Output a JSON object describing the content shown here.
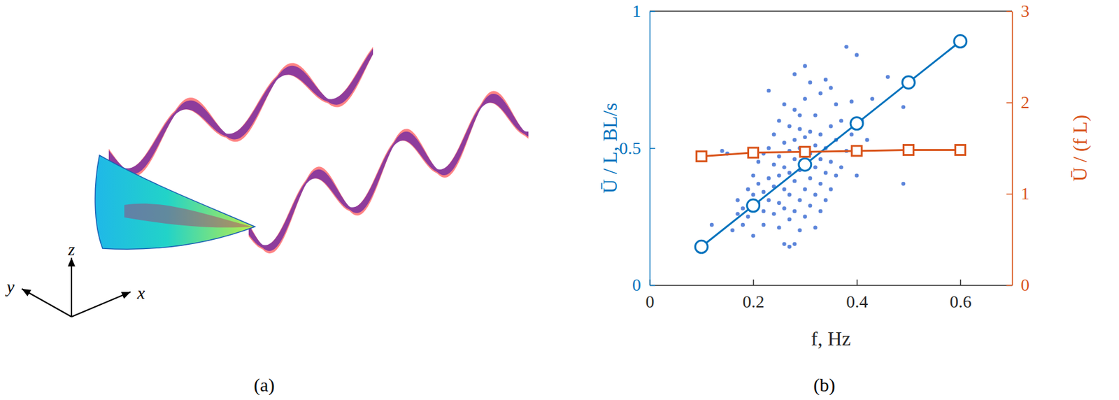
{
  "panel_a": {
    "label": "(a)",
    "axis_labels": {
      "x": "x",
      "y": "y",
      "z": "z"
    }
  },
  "chart_data": {
    "type": "line",
    "label": "(b)",
    "x_label": "f, Hz",
    "y_label": "Ū / L, BL/s",
    "y2_label": "Ū / (f L)",
    "xlim": [
      0,
      0.7
    ],
    "xticks": [
      0,
      0.2,
      0.4,
      0.6
    ],
    "ylim": [
      0,
      1
    ],
    "yticks": [
      0,
      0.5,
      1
    ],
    "y2lim": [
      0,
      3
    ],
    "y2ticks": [
      0,
      1,
      2,
      3
    ],
    "x": [
      0.1,
      0.2,
      0.3,
      0.4,
      0.5,
      0.6
    ],
    "series": [
      {
        "type": "scatter",
        "color": "#4a78d6",
        "marker": "circle",
        "x": [
          0.12,
          0.14,
          0.15,
          0.16,
          0.17,
          0.17,
          0.18,
          0.18,
          0.19,
          0.19,
          0.2,
          0.2,
          0.2,
          0.21,
          0.21,
          0.21,
          0.22,
          0.22,
          0.22,
          0.22,
          0.23,
          0.23,
          0.23,
          0.23,
          0.24,
          0.24,
          0.24,
          0.24,
          0.25,
          0.25,
          0.25,
          0.25,
          0.25,
          0.26,
          0.26,
          0.26,
          0.26,
          0.26,
          0.26,
          0.27,
          0.27,
          0.27,
          0.27,
          0.27,
          0.27,
          0.28,
          0.28,
          0.28,
          0.28,
          0.28,
          0.28,
          0.28,
          0.29,
          0.29,
          0.29,
          0.29,
          0.29,
          0.29,
          0.3,
          0.3,
          0.3,
          0.3,
          0.3,
          0.3,
          0.31,
          0.31,
          0.31,
          0.31,
          0.31,
          0.32,
          0.32,
          0.32,
          0.32,
          0.32,
          0.33,
          0.33,
          0.33,
          0.33,
          0.33,
          0.34,
          0.34,
          0.34,
          0.34,
          0.35,
          0.35,
          0.35,
          0.35,
          0.36,
          0.36,
          0.36,
          0.37,
          0.37,
          0.38,
          0.38,
          0.39,
          0.39,
          0.4,
          0.4,
          0.41,
          0.42,
          0.43,
          0.46,
          0.49,
          0.49
        ],
        "values": [
          0.22,
          0.49,
          0.48,
          0.2,
          0.26,
          0.31,
          0.28,
          0.22,
          0.35,
          0.25,
          0.33,
          0.4,
          0.18,
          0.3,
          0.37,
          0.45,
          0.27,
          0.34,
          0.48,
          0.22,
          0.31,
          0.39,
          0.71,
          0.5,
          0.26,
          0.36,
          0.44,
          0.55,
          0.21,
          0.3,
          0.4,
          0.47,
          0.6,
          0.15,
          0.28,
          0.35,
          0.43,
          0.52,
          0.66,
          0.14,
          0.24,
          0.33,
          0.41,
          0.49,
          0.58,
          0.15,
          0.27,
          0.38,
          0.46,
          0.53,
          0.64,
          0.77,
          0.2,
          0.31,
          0.42,
          0.5,
          0.57,
          0.62,
          0.25,
          0.35,
          0.45,
          0.54,
          0.68,
          0.8,
          0.29,
          0.39,
          0.48,
          0.56,
          0.74,
          0.21,
          0.33,
          0.43,
          0.51,
          0.62,
          0.27,
          0.37,
          0.46,
          0.55,
          0.7,
          0.31,
          0.41,
          0.5,
          0.75,
          0.35,
          0.45,
          0.58,
          0.72,
          0.4,
          0.53,
          0.66,
          0.43,
          0.6,
          0.87,
          0.49,
          0.55,
          0.67,
          0.4,
          0.84,
          0.6,
          0.53,
          0.68,
          0.76,
          0.37,
          0.65
        ]
      },
      {
        "type": "line",
        "color": "#0072bd",
        "marker": "circle",
        "values": [
          0.14,
          0.29,
          0.44,
          0.59,
          0.74,
          0.89
        ]
      },
      {
        "type": "line",
        "axis": "y2",
        "color": "#d95319",
        "marker": "square",
        "values": [
          1.41,
          1.45,
          1.46,
          1.47,
          1.48,
          1.48
        ]
      }
    ]
  }
}
